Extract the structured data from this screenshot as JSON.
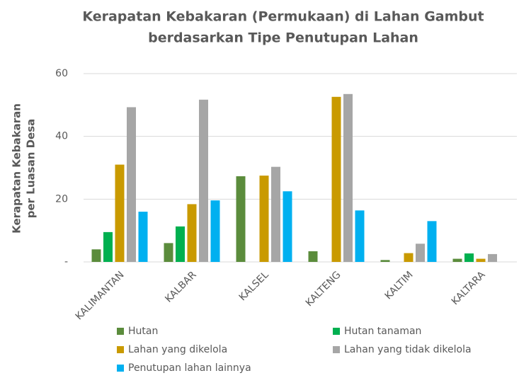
{
  "chart_data": {
    "type": "bar",
    "title": [
      "Kerapatan Kebakaran (Permukaan) di Lahan Gambut",
      "berdasarkan Tipe Penutupan Lahan"
    ],
    "y_label": [
      "Kerapatan Kebakaran",
      "per Luasan Desa"
    ],
    "categories": [
      "KALIMANTAN",
      "KALBAR",
      "KALSEL",
      "KALTENG",
      "KALTIM",
      "KALTARA"
    ],
    "series": [
      {
        "name": "Hutan",
        "color": "#5b8c3c",
        "values": [
          4.0,
          6.0,
          27.3,
          3.4,
          0.6,
          1.0
        ]
      },
      {
        "name": "Hutan tanaman",
        "color": "#00b050",
        "values": [
          9.5,
          11.3,
          0,
          0,
          0,
          2.7
        ]
      },
      {
        "name": "Lahan yang dikelola",
        "color": "#c99a00",
        "values": [
          31.0,
          18.4,
          27.5,
          52.6,
          2.8,
          1.0
        ]
      },
      {
        "name": "Lahan yang tidak dikelola",
        "color": "#a6a6a6",
        "values": [
          49.3,
          51.7,
          30.3,
          53.5,
          5.8,
          2.5
        ]
      },
      {
        "name": "Penutupan lahan lainnya",
        "color": "#00b0f0",
        "values": [
          16.0,
          19.6,
          22.5,
          16.4,
          13.0,
          0
        ]
      }
    ],
    "ylim": [
      0,
      60
    ],
    "yticks": [
      {
        "value": 0,
        "label": "-"
      },
      20,
      40,
      60
    ],
    "grid": true
  }
}
